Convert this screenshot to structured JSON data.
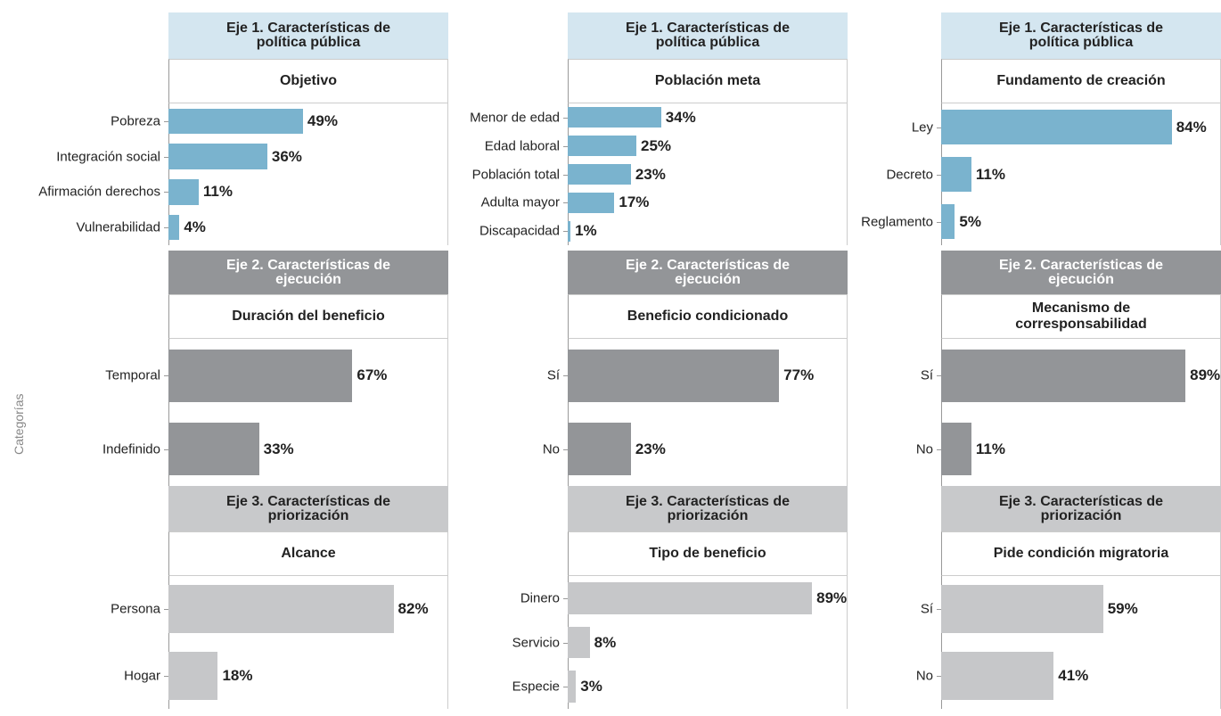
{
  "axis_label": "Categorías",
  "chart_data": [
    {
      "type": "bar",
      "header": "Eje 1. Características de política pública",
      "title": "Objetivo",
      "categories": [
        "Pobreza",
        "Integración social",
        "Afirmación derechos",
        "Vulnerabilidad"
      ],
      "values": [
        49,
        36,
        11,
        4
      ],
      "value_labels": [
        "49%",
        "36%",
        "11%",
        "4%"
      ],
      "color": "#7ab3ce"
    },
    {
      "type": "bar",
      "header": "Eje 1. Características de política pública",
      "title": "Población meta",
      "categories": [
        "Menor de edad",
        "Edad laboral",
        "Población total",
        "Adulta mayor",
        "Discapacidad"
      ],
      "values": [
        34,
        25,
        23,
        17,
        1
      ],
      "value_labels": [
        "34%",
        "25%",
        "23%",
        "17%",
        "1%"
      ],
      "color": "#7ab3ce"
    },
    {
      "type": "bar",
      "header": "Eje 1. Características de política pública",
      "title": "Fundamento de creación",
      "categories": [
        "Ley",
        "Decreto",
        "Reglamento"
      ],
      "values": [
        84,
        11,
        5
      ],
      "value_labels": [
        "84%",
        "11%",
        "5%"
      ],
      "color": "#7ab3ce"
    },
    {
      "type": "bar",
      "header": "Eje 2. Características de ejecución",
      "title": "Duración del beneficio",
      "categories": [
        "Temporal",
        "Indefinido"
      ],
      "values": [
        67,
        33
      ],
      "value_labels": [
        "67%",
        "33%"
      ],
      "color": "#939598"
    },
    {
      "type": "bar",
      "header": "Eje 2. Características de ejecución",
      "title": "Beneficio condicionado",
      "categories": [
        "Sí",
        "No"
      ],
      "values": [
        77,
        23
      ],
      "value_labels": [
        "77%",
        "23%"
      ],
      "color": "#939598"
    },
    {
      "type": "bar",
      "header": "Eje 2. Características de ejecución",
      "title": "Mecanismo de corresponsabilidad",
      "categories": [
        "Sí",
        "No"
      ],
      "values": [
        89,
        11
      ],
      "value_labels": [
        "89%",
        "11%"
      ],
      "color": "#939598"
    },
    {
      "type": "bar",
      "header": "Eje 3. Características de priorización",
      "title": "Alcance",
      "categories": [
        "Persona",
        "Hogar"
      ],
      "values": [
        82,
        18
      ],
      "value_labels": [
        "82%",
        "18%"
      ],
      "color": "#c6c7c9"
    },
    {
      "type": "bar",
      "header": "Eje 3. Características de priorización",
      "title": "Tipo de beneficio",
      "categories": [
        "Dinero",
        "Servicio",
        "Especie"
      ],
      "values": [
        89,
        8,
        3
      ],
      "value_labels": [
        "89%",
        "8%",
        "3%"
      ],
      "color": "#c6c7c9"
    },
    {
      "type": "bar",
      "header": "Eje 3. Características de priorización",
      "title": "Pide condición migratoria",
      "categories": [
        "Sí",
        "No"
      ],
      "values": [
        59,
        41
      ],
      "value_labels": [
        "59%",
        "41%"
      ],
      "color": "#c6c7c9"
    }
  ]
}
